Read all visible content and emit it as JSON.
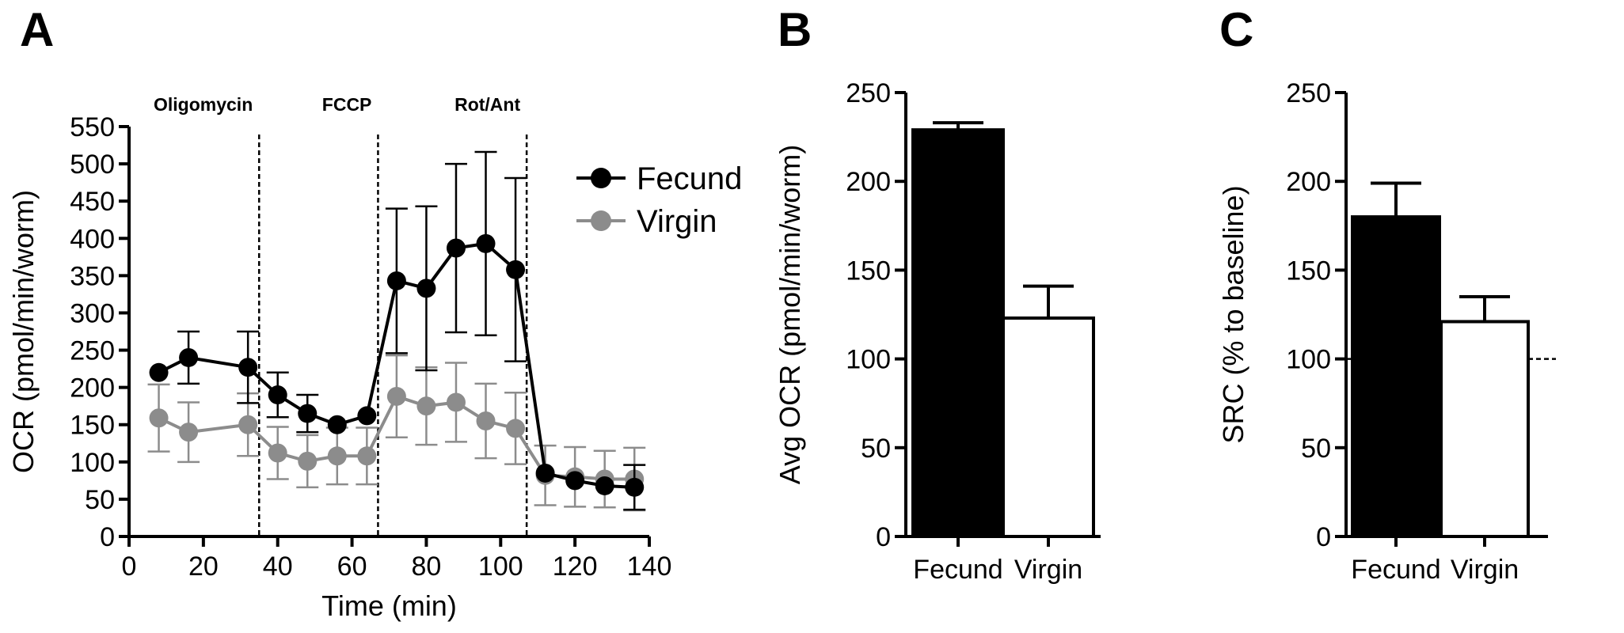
{
  "chart_data": [
    {
      "panel": "A",
      "type": "line",
      "title": "",
      "xlabel": "Time (min)",
      "ylabel": "OCR (pmol/min/worm)",
      "xlim": [
        0,
        140
      ],
      "ylim": [
        0,
        550
      ],
      "xticks": [
        "0",
        "20",
        "40",
        "60",
        "80",
        "100",
        "120",
        "140"
      ],
      "yticks": [
        "0",
        "50",
        "100",
        "150",
        "200",
        "250",
        "300",
        "350",
        "400",
        "450",
        "500",
        "550"
      ],
      "grid": false,
      "legend_position": "top-right",
      "annotations": [
        {
          "label": "Oligomycin",
          "x": 35
        },
        {
          "label": "FCCP",
          "x": 67
        },
        {
          "label": "Rot/Ant",
          "x": 107
        }
      ],
      "series": [
        {
          "name": "Fecund",
          "color": "#000000",
          "x": [
            8,
            16,
            32,
            40,
            48,
            56,
            64,
            72,
            80,
            88,
            96,
            104,
            112,
            120,
            128,
            136
          ],
          "y": [
            220,
            240,
            227,
            190,
            165,
            150,
            162,
            343,
            333,
            387,
            393,
            358,
            85,
            75,
            68,
            66
          ],
          "err": [
            0,
            35,
            48,
            30,
            25,
            0,
            0,
            97,
            110,
            113,
            123,
            123,
            0,
            0,
            0,
            30
          ]
        },
        {
          "name": "Virgin",
          "color": "#8c8c8c",
          "x": [
            8,
            16,
            32,
            40,
            48,
            56,
            64,
            72,
            80,
            88,
            96,
            104,
            112,
            120,
            128,
            136
          ],
          "y": [
            159,
            140,
            150,
            112,
            101,
            108,
            108,
            188,
            175,
            180,
            155,
            145,
            82,
            80,
            77,
            77
          ],
          "err": [
            45,
            40,
            42,
            35,
            35,
            38,
            38,
            55,
            52,
            53,
            50,
            48,
            40,
            40,
            38,
            42
          ]
        }
      ]
    },
    {
      "panel": "B",
      "type": "bar",
      "title": "",
      "xlabel": "",
      "ylabel": "Avg OCR (pmol/min/worm)",
      "ylim": [
        0,
        250
      ],
      "yticks": [
        "0",
        "50",
        "100",
        "150",
        "200",
        "250"
      ],
      "categories": [
        "Fecund",
        "Virgin"
      ],
      "values": [
        229,
        123
      ],
      "err": [
        4,
        18
      ],
      "fills": [
        "#000000",
        "#ffffff"
      ]
    },
    {
      "panel": "C",
      "type": "bar",
      "title": "",
      "xlabel": "",
      "ylabel": "SRC (% to baseline)",
      "ylim": [
        0,
        250
      ],
      "yticks": [
        "0",
        "50",
        "100",
        "150",
        "200",
        "250"
      ],
      "categories": [
        "Fecund",
        "Virgin"
      ],
      "values": [
        180,
        121
      ],
      "err": [
        19,
        14
      ],
      "fills": [
        "#000000",
        "#ffffff"
      ],
      "reference_line": 100
    }
  ]
}
